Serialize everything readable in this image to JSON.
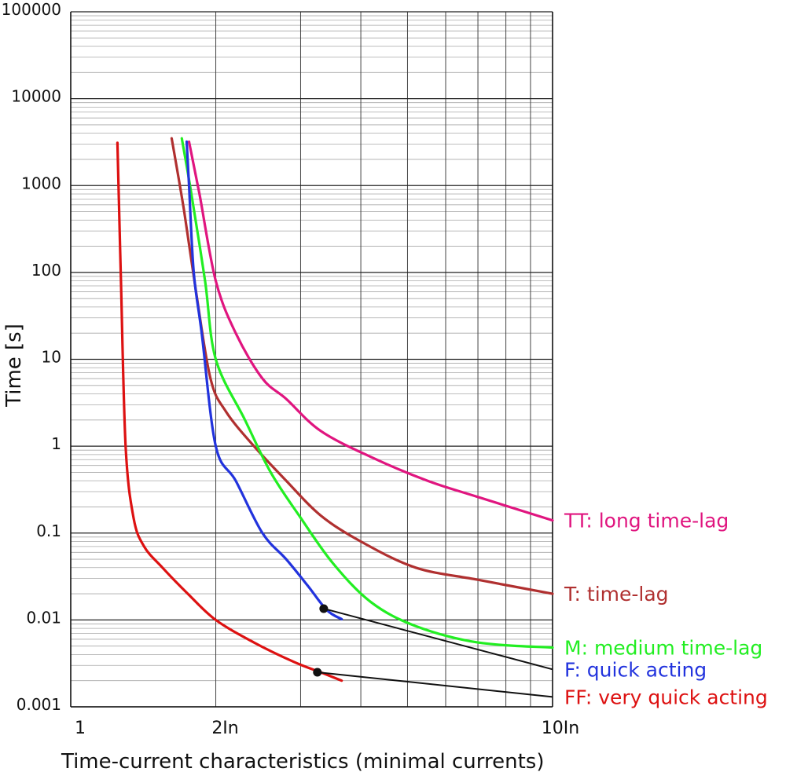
{
  "chart_data": {
    "type": "line",
    "title": "",
    "xlabel": "Time-current characteristics (minimal currents)",
    "ylabel": "Time [s]",
    "x_scale": "log",
    "y_scale": "log",
    "xlim": [
      1,
      10
    ],
    "ylim": [
      0.001,
      100000
    ],
    "grid": true,
    "legend_placement": "right",
    "x_ticks": [
      {
        "value": 1,
        "label": "1"
      },
      {
        "value": 2,
        "label": "2In"
      },
      {
        "value": 10,
        "label": "10In"
      }
    ],
    "y_ticks": [
      {
        "value": 100000,
        "label": "100000"
      },
      {
        "value": 10000,
        "label": "10000"
      },
      {
        "value": 1000,
        "label": "1000"
      },
      {
        "value": 100,
        "label": "100"
      },
      {
        "value": 10,
        "label": "10"
      },
      {
        "value": 1,
        "label": "1"
      },
      {
        "value": 0.1,
        "label": "0.1"
      },
      {
        "value": 0.01,
        "label": "0.01"
      },
      {
        "value": 0.001,
        "label": "0.001"
      }
    ],
    "series": [
      {
        "name": "TT: long time-lag",
        "color": "#e0157f",
        "points": [
          [
            1.76,
            3200
          ],
          [
            1.85,
            800
          ],
          [
            2.0,
            80
          ],
          [
            2.2,
            20
          ],
          [
            2.5,
            6
          ],
          [
            2.8,
            3.5
          ],
          [
            3.3,
            1.5
          ],
          [
            4.2,
            0.75
          ],
          [
            5.5,
            0.4
          ],
          [
            7.0,
            0.26
          ],
          [
            10,
            0.14
          ]
        ]
      },
      {
        "name": "T: time-lag",
        "color": "#b03030",
        "points": [
          [
            1.62,
            3500
          ],
          [
            1.72,
            500
          ],
          [
            1.82,
            60
          ],
          [
            1.95,
            6
          ],
          [
            2.1,
            2.5
          ],
          [
            2.4,
            1.0
          ],
          [
            2.8,
            0.4
          ],
          [
            3.3,
            0.16
          ],
          [
            4.0,
            0.08
          ],
          [
            5.2,
            0.04
          ],
          [
            7.0,
            0.029
          ],
          [
            10,
            0.02
          ]
        ]
      },
      {
        "name": "M: medium time-lag",
        "color": "#22ee22",
        "points": [
          [
            1.7,
            3500
          ],
          [
            1.78,
            800
          ],
          [
            1.9,
            80
          ],
          [
            2.0,
            10
          ],
          [
            2.3,
            2.0
          ],
          [
            2.6,
            0.5
          ],
          [
            3.0,
            0.15
          ],
          [
            3.5,
            0.045
          ],
          [
            4.2,
            0.016
          ],
          [
            5.2,
            0.0085
          ],
          [
            7.0,
            0.0055
          ],
          [
            10,
            0.0048
          ]
        ]
      },
      {
        "name": "F: quick acting",
        "color": "#2233dd",
        "points": [
          [
            1.74,
            3200
          ],
          [
            1.76,
            1000
          ],
          [
            1.8,
            100
          ],
          [
            1.87,
            20
          ],
          [
            2.0,
            1.0
          ],
          [
            2.2,
            0.4
          ],
          [
            2.5,
            0.1
          ],
          [
            2.8,
            0.05
          ],
          [
            3.1,
            0.025
          ],
          [
            3.4,
            0.013
          ],
          [
            3.65,
            0.0102
          ]
        ]
      },
      {
        "name": "FF: very quick acting",
        "color": "#dd1111",
        "points": [
          [
            1.25,
            3100
          ],
          [
            1.27,
            100
          ],
          [
            1.3,
            1.0
          ],
          [
            1.35,
            0.15
          ],
          [
            1.42,
            0.07
          ],
          [
            1.55,
            0.04
          ],
          [
            1.75,
            0.02
          ],
          [
            2.0,
            0.01
          ],
          [
            2.4,
            0.0055
          ],
          [
            2.9,
            0.0033
          ],
          [
            3.3,
            0.0025
          ],
          [
            3.65,
            0.002
          ]
        ]
      }
    ],
    "annotations": [
      {
        "marker": [
          3.35,
          0.0135
        ],
        "target": [
          10,
          0.0027
        ],
        "label_for": "F: quick acting"
      },
      {
        "marker": [
          3.25,
          0.0025
        ],
        "target": [
          10,
          0.0013
        ],
        "label_for": "FF: very quick acting"
      }
    ]
  }
}
